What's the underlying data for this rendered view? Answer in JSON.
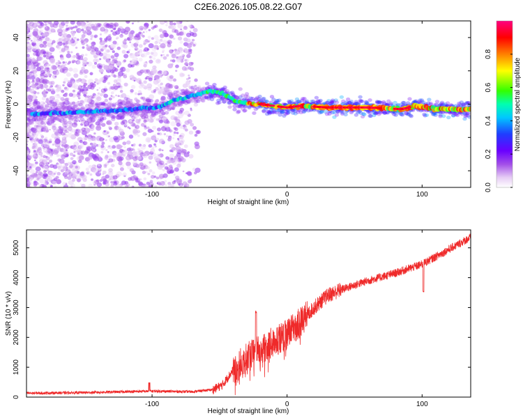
{
  "figure": {
    "title": "C2E6.2026.105.08.22.G07"
  },
  "chart_data": [
    {
      "type": "heatmap",
      "name": "spectrogram",
      "xlabel": "Height of straight line (km)",
      "ylabel": "Frequency (Hz)",
      "xlim": [
        -193,
        136
      ],
      "ylim": [
        -50,
        50
      ],
      "xticks": [
        -100,
        0,
        100
      ],
      "yticks": [
        -40,
        -20,
        0,
        20,
        40
      ],
      "colorbar": {
        "label": "Normalized spectral amplitude",
        "range": [
          0,
          1
        ],
        "ticks": [
          0.0,
          0.2,
          0.4,
          0.6,
          0.8
        ],
        "colormap": [
          "#ffffff",
          "#e6ccf5",
          "#a24ee8",
          "#6a00ff",
          "#1f3dff",
          "#00c8ff",
          "#00ffb0",
          "#33ff00",
          "#ffff00",
          "#ff8000",
          "#ff0000",
          "#ff0080"
        ]
      },
      "ridge": {
        "description": "dominant frequency ridge",
        "height_km": [
          -187,
          -160,
          -130,
          -110,
          -95,
          -85,
          -75,
          -65,
          -57,
          -50,
          -45,
          -38,
          -30,
          -20,
          -10,
          0,
          10,
          30,
          60,
          85,
          95,
          110,
          136
        ],
        "frequency_hz": [
          -6,
          -5,
          -4,
          -2.5,
          -2,
          2,
          4,
          6,
          8,
          7,
          5,
          2,
          0.5,
          0,
          -1,
          -2,
          -1,
          -2,
          -2,
          -3,
          -1,
          -3,
          -3
        ]
      }
    },
    {
      "type": "line",
      "name": "snr",
      "xlabel": "Height of straight line (km)",
      "ylabel": "SNR (10 * v/v)",
      "xlim": [
        -193,
        136
      ],
      "ylim": [
        0,
        5600
      ],
      "xticks": [
        -100,
        0,
        100
      ],
      "yticks": [
        0,
        1000,
        2000,
        3000,
        4000,
        5000
      ],
      "color": "#ef2a2a",
      "trend": {
        "x": [
          -193,
          -150,
          -100,
          -70,
          -55,
          -48,
          -40,
          -30,
          -20,
          -10,
          0,
          10,
          20,
          30,
          40,
          60,
          80,
          100,
          120,
          136
        ],
        "y": [
          130,
          150,
          200,
          180,
          250,
          400,
          900,
          1300,
          1600,
          1850,
          2100,
          2500,
          3000,
          3400,
          3600,
          3900,
          4150,
          4450,
          4950,
          5350
        ]
      },
      "events": {
        "spike_x": -23,
        "spike_y": 2850,
        "dip_x": 101,
        "dip_y": 3550
      }
    }
  ]
}
